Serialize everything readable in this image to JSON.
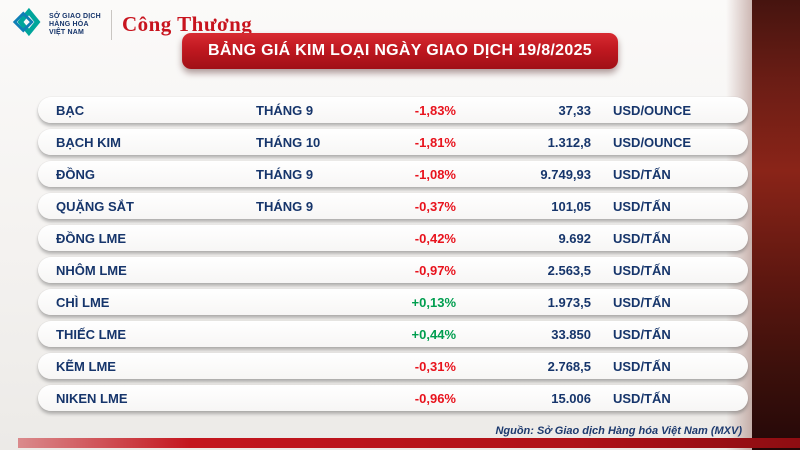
{
  "header": {
    "title": "BẢNG GIÁ KIM LOẠI NGÀY GIAO DỊCH 19/8/2025",
    "mxv_logo": {
      "line1": "SỞ GIAO DỊCH",
      "line2": "HÀNG HÓA",
      "line3": "VIỆT NAM"
    },
    "congthuong_logo": "Công Thương"
  },
  "colors": {
    "accent_red": "#c4161e",
    "navy": "#16356b",
    "down_red": "#e8131d",
    "up_green": "#009e4f"
  },
  "chart_data": {
    "type": "table",
    "title": "BẢNG GIÁ KIM LOẠI NGÀY GIAO DỊCH 19/8/2025",
    "rows": [
      {
        "name": "BẠC",
        "month": "THÁNG 9",
        "change": "-1,83%",
        "price": "37,33",
        "unit": "USD/OUNCE"
      },
      {
        "name": "BẠCH KIM",
        "month": "THÁNG 10",
        "change": "-1,81%",
        "price": "1.312,8",
        "unit": "USD/OUNCE"
      },
      {
        "name": "ĐỒNG",
        "month": "THÁNG 9",
        "change": "-1,08%",
        "price": "9.749,93",
        "unit": "USD/TẤN"
      },
      {
        "name": "QUẶNG SẮT",
        "month": "THÁNG 9",
        "change": "-0,37%",
        "price": "101,05",
        "unit": "USD/TẤN"
      },
      {
        "name": "ĐỒNG LME",
        "month": "",
        "change": "-0,42%",
        "price": "9.692",
        "unit": "USD/TẤN"
      },
      {
        "name": "NHÔM LME",
        "month": "",
        "change": "-0,97%",
        "price": "2.563,5",
        "unit": "USD/TẤN"
      },
      {
        "name": "CHÌ LME",
        "month": "",
        "change": "+0,13%",
        "price": "1.973,5",
        "unit": "USD/TẤN"
      },
      {
        "name": "THIẾC LME",
        "month": "",
        "change": "+0,44%",
        "price": "33.850",
        "unit": "USD/TẤN"
      },
      {
        "name": "KẼM LME",
        "month": "",
        "change": "-0,31%",
        "price": "2.768,5",
        "unit": "USD/TẤN"
      },
      {
        "name": "NIKEN LME",
        "month": "",
        "change": "-0,96%",
        "price": "15.006",
        "unit": "USD/TẤN"
      }
    ]
  },
  "footer": {
    "source": "Nguồn: Sở Giao dịch Hàng hóa Việt Nam (MXV)"
  }
}
